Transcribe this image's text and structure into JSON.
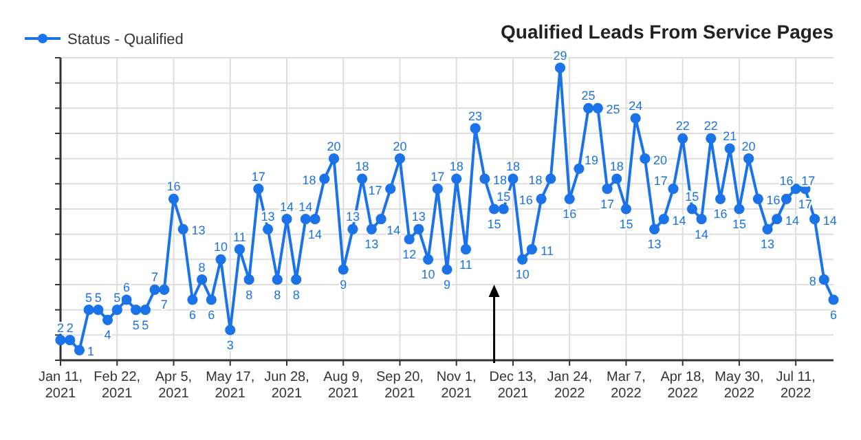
{
  "chart_data": {
    "type": "line",
    "title": "Qualified Leads From Service Pages",
    "x": [
      "2021-01-11",
      "2021-01-18",
      "2021-01-25",
      "2021-02-01",
      "2021-02-08",
      "2021-02-15",
      "2021-02-22",
      "2021-03-01",
      "2021-03-08",
      "2021-03-15",
      "2021-03-22",
      "2021-03-29",
      "2021-04-05",
      "2021-04-12",
      "2021-04-19",
      "2021-04-26",
      "2021-05-03",
      "2021-05-10",
      "2021-05-17",
      "2021-05-24",
      "2021-05-31",
      "2021-06-07",
      "2021-06-14",
      "2021-06-21",
      "2021-06-28",
      "2021-07-05",
      "2021-07-12",
      "2021-07-19",
      "2021-07-26",
      "2021-08-02",
      "2021-08-09",
      "2021-08-16",
      "2021-08-23",
      "2021-08-30",
      "2021-09-06",
      "2021-09-13",
      "2021-09-20",
      "2021-09-27",
      "2021-10-04",
      "2021-10-11",
      "2021-10-18",
      "2021-10-25",
      "2021-11-01",
      "2021-11-08",
      "2021-11-15",
      "2021-11-22",
      "2021-11-29",
      "2021-12-06",
      "2021-12-13",
      "2021-12-20",
      "2021-12-27",
      "2022-01-03",
      "2022-01-10",
      "2022-01-17",
      "2022-01-24",
      "2022-01-31",
      "2022-02-07",
      "2022-02-14",
      "2022-02-21",
      "2022-02-28",
      "2022-03-07",
      "2022-03-14",
      "2022-03-21",
      "2022-03-28",
      "2022-04-04",
      "2022-04-11",
      "2022-04-18",
      "2022-04-25",
      "2022-05-02",
      "2022-05-09",
      "2022-05-16",
      "2022-05-23",
      "2022-05-30",
      "2022-06-06",
      "2022-06-13",
      "2022-06-20",
      "2022-06-27",
      "2022-07-04",
      "2022-07-11",
      "2022-07-18",
      "2022-07-25",
      "2022-08-01",
      "2022-08-08"
    ],
    "series": [
      {
        "name": "Status - Qualified",
        "color": "#1a73e8",
        "values": [
          2,
          2,
          1,
          5,
          5,
          4,
          5,
          6,
          5,
          5,
          7,
          7,
          16,
          13,
          6,
          8,
          6,
          10,
          3,
          11,
          8,
          17,
          13,
          8,
          14,
          8,
          14,
          14,
          18,
          20,
          9,
          13,
          18,
          13,
          14,
          17,
          20,
          12,
          13,
          10,
          17,
          9,
          18,
          11,
          23,
          18,
          15,
          15,
          18,
          10,
          11,
          16,
          18,
          29,
          16,
          19,
          25,
          25,
          17,
          18,
          15,
          24,
          20,
          13,
          14,
          17,
          22,
          15,
          14,
          22,
          16,
          21,
          15,
          20,
          16,
          13,
          14,
          16,
          17,
          17,
          14,
          8,
          6
        ]
      }
    ],
    "xlim": [
      "2021-01-11",
      "2022-08-08"
    ],
    "xticks": [
      {
        "value": "2021-01-11",
        "label": "Jan 11, 2021"
      },
      {
        "value": "2021-02-22",
        "label": "Feb 22, 2021"
      },
      {
        "value": "2021-04-05",
        "label": "Apr 5, 2021"
      },
      {
        "value": "2021-05-17",
        "label": "May 17, 2021"
      },
      {
        "value": "2021-06-28",
        "label": "Jun 28, 2021"
      },
      {
        "value": "2021-08-09",
        "label": "Aug 9, 2021"
      },
      {
        "value": "2021-09-20",
        "label": "Sep 20, 2021"
      },
      {
        "value": "2021-11-01",
        "label": "Nov 1, 2021"
      },
      {
        "value": "2021-12-13",
        "label": "Dec 13, 2021"
      },
      {
        "value": "2022-01-24",
        "label": "Jan 24, 2022"
      },
      {
        "value": "2022-03-07",
        "label": "Mar 7, 2022"
      },
      {
        "value": "2022-04-18",
        "label": "Apr 18, 2022"
      },
      {
        "value": "2022-05-30",
        "label": "May 30, 2022"
      },
      {
        "value": "2022-07-11",
        "label": "Jul 11, 2022"
      }
    ],
    "ylim": [
      0,
      30
    ],
    "yticks": [
      {
        "value": 0,
        "label": null
      },
      {
        "value": 2.5,
        "label": null
      },
      {
        "value": 5,
        "label": null
      },
      {
        "value": 7.5,
        "label": null
      },
      {
        "value": 10,
        "label": null
      },
      {
        "value": 12.5,
        "label": null
      },
      {
        "value": 15,
        "label": null
      },
      {
        "value": 17.5,
        "label": null
      },
      {
        "value": 20,
        "label": null
      },
      {
        "value": 22.5,
        "label": null
      },
      {
        "value": 25,
        "label": null
      },
      {
        "value": 27.5,
        "label": null
      },
      {
        "value": 30,
        "label": null
      }
    ],
    "tick_labels": "x",
    "grid": true,
    "legend": "top left",
    "marker": "circle",
    "line_style": "solid",
    "data_labels": true
  }
}
